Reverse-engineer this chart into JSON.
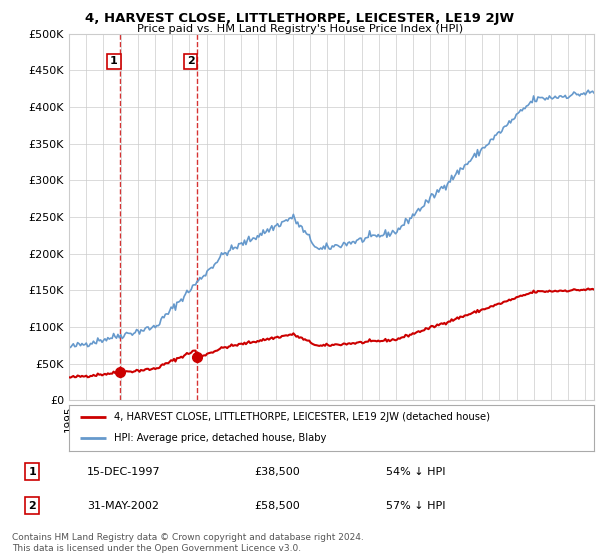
{
  "title": "4, HARVEST CLOSE, LITTLETHORPE, LEICESTER, LE19 2JW",
  "subtitle": "Price paid vs. HM Land Registry's House Price Index (HPI)",
  "ylim": [
    0,
    500000
  ],
  "yticks": [
    0,
    50000,
    100000,
    150000,
    200000,
    250000,
    300000,
    350000,
    400000,
    450000,
    500000
  ],
  "ytick_labels": [
    "£0",
    "£50K",
    "£100K",
    "£150K",
    "£200K",
    "£250K",
    "£300K",
    "£350K",
    "£400K",
    "£450K",
    "£500K"
  ],
  "xlim_start": 1995.0,
  "xlim_end": 2025.5,
  "sale_dates": [
    1997.958,
    2002.414
  ],
  "sale_prices": [
    38500,
    58500
  ],
  "sale_labels": [
    "1",
    "2"
  ],
  "annotation1_date": "15-DEC-1997",
  "annotation1_price": "£38,500",
  "annotation1_pct": "54% ↓ HPI",
  "annotation2_date": "31-MAY-2002",
  "annotation2_price": "£58,500",
  "annotation2_pct": "57% ↓ HPI",
  "legend_line1": "4, HARVEST CLOSE, LITTLETHORPE, LEICESTER, LE19 2JW (detached house)",
  "legend_line2": "HPI: Average price, detached house, Blaby",
  "footer": "Contains HM Land Registry data © Crown copyright and database right 2024.\nThis data is licensed under the Open Government Licence v3.0.",
  "red_color": "#cc0000",
  "blue_color": "#6699cc",
  "background_color": "#ffffff",
  "grid_color": "#cccccc"
}
